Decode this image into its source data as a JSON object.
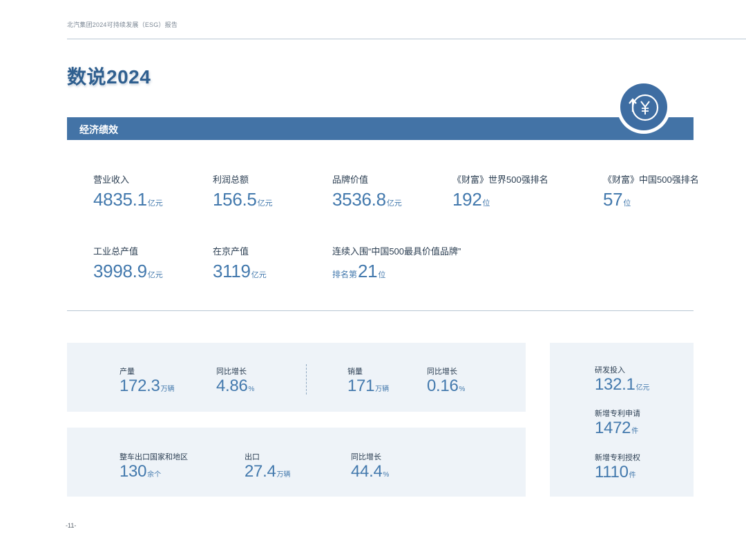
{
  "header": {
    "report_title": "北汽集团2024可持续发展（ESG）报告"
  },
  "page_title": "数说2024",
  "section": {
    "title": "经济绩效",
    "icon": "currency-up-arrow-icon"
  },
  "economic_stats": {
    "revenue": {
      "label": "营业收入",
      "value": "4835.1",
      "unit": "亿元"
    },
    "profit": {
      "label": "利润总额",
      "value": "156.5",
      "unit": "亿元"
    },
    "brand_value": {
      "label": "品牌价值",
      "value": "3536.8",
      "unit": "亿元"
    },
    "fortune_global": {
      "label": "《财富》世界500强排名",
      "value": "192",
      "unit": "位"
    },
    "fortune_china": {
      "label": "《财富》中国500强排名",
      "value": "57",
      "unit": "位"
    },
    "industrial_output": {
      "label": "工业总产值",
      "value": "3998.9",
      "unit": "亿元"
    },
    "beijing_output": {
      "label": "在京产值",
      "value": "3119",
      "unit": "亿元"
    },
    "brand_rank": {
      "label": "连续入围“中国500最具价值品牌”",
      "prefix": "排名第",
      "value": "21",
      "unit": "位"
    }
  },
  "production": {
    "output": {
      "label": "产量",
      "value": "172.3",
      "unit": "万辆"
    },
    "output_growth": {
      "label": "同比增长",
      "value": "4.86",
      "unit": "%"
    },
    "sales": {
      "label": "销量",
      "value": "171",
      "unit": "万辆"
    },
    "sales_growth": {
      "label": "同比增长",
      "value": "0.16",
      "unit": "%"
    }
  },
  "export": {
    "countries": {
      "label": "整车出口国家和地区",
      "value": "130",
      "unit": "余个"
    },
    "export_volume": {
      "label": "出口",
      "value": "27.4",
      "unit": "万辆"
    },
    "export_growth": {
      "label": "同比增长",
      "value": "44.4",
      "unit": "%"
    }
  },
  "rnd": {
    "investment": {
      "label": "研发投入",
      "value": "132.1",
      "unit": "亿元"
    },
    "patent_applications": {
      "label": "新增专利申请",
      "value": "1472",
      "unit": "件"
    },
    "patent_grants": {
      "label": "新增专利授权",
      "value": "1110",
      "unit": "件"
    }
  },
  "page_number": "-11-"
}
